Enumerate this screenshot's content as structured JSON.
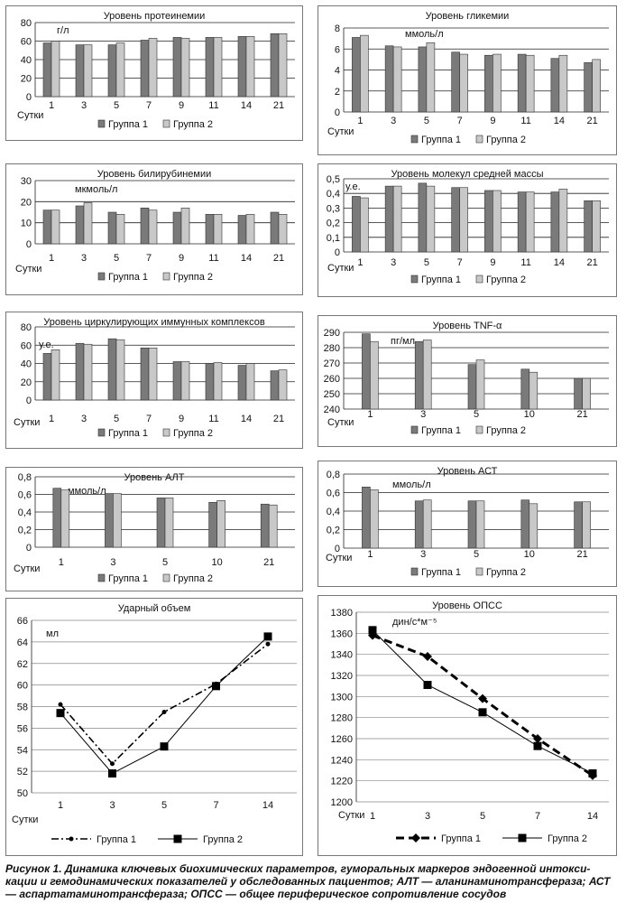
{
  "chart_data": [
    {
      "id": "protein",
      "type": "bar",
      "title": "Уровень протеинемии",
      "unit": "г/л",
      "xlabel": "Сутки",
      "categories": [
        "1",
        "3",
        "5",
        "7",
        "9",
        "11",
        "14",
        "21"
      ],
      "ylim": [
        0,
        80
      ],
      "yticks": [
        0,
        20,
        40,
        60,
        80
      ],
      "series": [
        {
          "name": "Группа 1",
          "values": [
            58,
            56,
            56,
            61,
            64,
            64,
            65,
            68
          ]
        },
        {
          "name": "Группа 2",
          "values": [
            60,
            56,
            58,
            63,
            63,
            64,
            65,
            68
          ]
        }
      ]
    },
    {
      "id": "glyc",
      "type": "bar",
      "title": "Уровень гликемии",
      "unit": "ммоль/л",
      "xlabel": "Сутки",
      "categories": [
        "1",
        "3",
        "5",
        "7",
        "9",
        "11",
        "14",
        "21"
      ],
      "ylim": [
        0,
        8
      ],
      "yticks": [
        0,
        2,
        4,
        6,
        8
      ],
      "series": [
        {
          "name": "Группа 1",
          "values": [
            7.1,
            6.3,
            6.2,
            5.7,
            5.4,
            5.5,
            5.1,
            4.7
          ]
        },
        {
          "name": "Группа 2",
          "values": [
            7.3,
            6.2,
            6.6,
            5.5,
            5.5,
            5.4,
            5.4,
            5.0
          ]
        }
      ]
    },
    {
      "id": "bili",
      "type": "bar",
      "title": "Уровень билирубинемии",
      "unit": "мкмоль/л",
      "xlabel": "Сутки",
      "categories": [
        "1",
        "3",
        "5",
        "7",
        "9",
        "11",
        "14",
        "21"
      ],
      "ylim": [
        0,
        30
      ],
      "yticks": [
        0,
        10,
        20,
        30
      ],
      "series": [
        {
          "name": "Группа 1",
          "values": [
            16,
            18,
            15,
            17,
            15,
            14,
            13.5,
            15
          ]
        },
        {
          "name": "Группа 2",
          "values": [
            16,
            19.5,
            14,
            16,
            17,
            14,
            14,
            14
          ]
        }
      ]
    },
    {
      "id": "msm",
      "type": "bar",
      "title": "Уровень молекул средней массы",
      "unit": "у.е.",
      "xlabel": "Сутки",
      "categories": [
        "1",
        "3",
        "5",
        "7",
        "9",
        "11",
        "14",
        "21"
      ],
      "ylim": [
        0,
        0.5
      ],
      "yticks": [
        0,
        0.1,
        0.2,
        0.3,
        0.4,
        0.5
      ],
      "ytick_labels": [
        "0",
        "0,1",
        "0,2",
        "0,3",
        "0,4",
        "0,5"
      ],
      "series": [
        {
          "name": "Группа 1",
          "values": [
            0.38,
            0.45,
            0.47,
            0.44,
            0.42,
            0.41,
            0.41,
            0.35
          ]
        },
        {
          "name": "Группа 2",
          "values": [
            0.37,
            0.45,
            0.45,
            0.44,
            0.42,
            0.41,
            0.43,
            0.35
          ]
        }
      ]
    },
    {
      "id": "cic",
      "type": "bar",
      "title": "Уровень циркулирующих иммунных комплексов",
      "unit": "у.е.",
      "xlabel": "Сутки",
      "categories": [
        "1",
        "3",
        "5",
        "7",
        "9",
        "11",
        "14",
        "21"
      ],
      "ylim": [
        0,
        80
      ],
      "yticks": [
        0,
        20,
        40,
        60,
        80
      ],
      "series": [
        {
          "name": "Группа 1",
          "values": [
            51,
            62,
            67,
            57,
            42,
            40,
            38,
            32
          ]
        },
        {
          "name": "Группа 2",
          "values": [
            55,
            61,
            66,
            57,
            42,
            41,
            40,
            33
          ]
        }
      ]
    },
    {
      "id": "tnf",
      "type": "bar",
      "title": "Уровень TNF-α",
      "unit": "пг/мл",
      "xlabel": "Сутки",
      "categories": [
        "1",
        "3",
        "5",
        "10",
        "21"
      ],
      "ylim": [
        240,
        290
      ],
      "yticks": [
        240,
        250,
        260,
        270,
        280,
        290
      ],
      "series": [
        {
          "name": "Группа 1",
          "values": [
            289,
            284,
            269,
            266,
            260
          ]
        },
        {
          "name": "Группа 2",
          "values": [
            284,
            285,
            272,
            264,
            260
          ]
        }
      ]
    },
    {
      "id": "alt",
      "type": "bar",
      "title": "Уровень АЛТ",
      "unit": "ммоль/л",
      "xlabel": "Сутки",
      "categories": [
        "1",
        "3",
        "5",
        "10",
        "21"
      ],
      "ylim": [
        0,
        0.8
      ],
      "yticks": [
        0,
        0.2,
        0.4,
        0.6,
        0.8
      ],
      "ytick_labels": [
        "0",
        "0,2",
        "0,4",
        "0,6",
        "0,8"
      ],
      "series": [
        {
          "name": "Группа 1",
          "values": [
            0.67,
            0.61,
            0.56,
            0.51,
            0.49
          ]
        },
        {
          "name": "Группа 2",
          "values": [
            0.65,
            0.61,
            0.56,
            0.53,
            0.48
          ]
        }
      ]
    },
    {
      "id": "ast",
      "type": "bar",
      "title": "Уровень АСТ",
      "unit": "ммоль/л",
      "xlabel": "Сутки",
      "categories": [
        "1",
        "3",
        "5",
        "10",
        "21"
      ],
      "ylim": [
        0,
        0.8
      ],
      "yticks": [
        0,
        0.2,
        0.4,
        0.6,
        0.8
      ],
      "ytick_labels": [
        "0",
        "0,2",
        "0,4",
        "0,6",
        "0,8"
      ],
      "series": [
        {
          "name": "Группа 1",
          "values": [
            0.66,
            0.51,
            0.51,
            0.52,
            0.5
          ]
        },
        {
          "name": "Группа 2",
          "values": [
            0.63,
            0.52,
            0.51,
            0.48,
            0.5
          ]
        }
      ]
    },
    {
      "id": "sv",
      "type": "line",
      "title": "Ударный объем",
      "unit": "мл",
      "xlabel": "Сутки",
      "categories": [
        "1",
        "3",
        "5",
        "7",
        "14"
      ],
      "ylim": [
        50,
        66
      ],
      "yticks": [
        50,
        52,
        54,
        56,
        58,
        60,
        62,
        64,
        66
      ],
      "series": [
        {
          "name": "Группа 1",
          "values": [
            58.2,
            52.7,
            57.5,
            60.1,
            63.8
          ]
        },
        {
          "name": "Группа 2",
          "values": [
            57.4,
            51.8,
            54.3,
            59.9,
            64.5
          ]
        }
      ]
    },
    {
      "id": "opss",
      "type": "line",
      "title": "Уровень ОПСС",
      "unit": "дин/с*м⁻⁵",
      "xlabel": "Сутки",
      "categories": [
        "1",
        "3",
        "5",
        "7",
        "14"
      ],
      "ylim": [
        1200,
        1380
      ],
      "yticks": [
        1200,
        1220,
        1240,
        1260,
        1280,
        1300,
        1320,
        1340,
        1360,
        1380
      ],
      "series": [
        {
          "name": "Группа 1",
          "values": [
            1358,
            1338,
            1298,
            1260,
            1225
          ]
        },
        {
          "name": "Группа 2",
          "values": [
            1363,
            1311,
            1285,
            1253,
            1227
          ]
        }
      ]
    }
  ],
  "caption": {
    "label": "Рисунок 1.",
    "text": "Динамика ключевых биохимических параметров, гуморальных маркеров эндогенной интокси-кации и гемодинамических показателей у обследованных пациентов; АЛТ — аланинаминотрансфераза; АСТ — аспартатаминотрансфераза; ОПСС — общее периферическое сопротивление сосудов"
  },
  "colors": {
    "group1_bar": "#7a7a7a",
    "group2_bar": "#c8c8c8",
    "line": "#000000"
  }
}
